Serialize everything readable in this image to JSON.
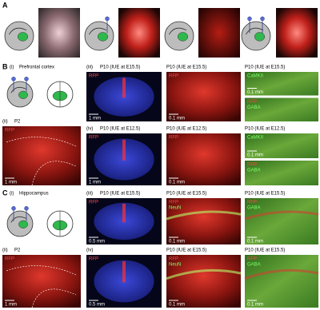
{
  "panel_a": {
    "label": "A"
  },
  "panel_b": {
    "label": "B",
    "schematic": {
      "label": "(i)",
      "title": "Prefrontal cortex"
    },
    "p2": {
      "label": "(ii)",
      "title": "P2",
      "stains": [
        {
          "text": "RFP",
          "color": "#ff4a4a"
        }
      ],
      "scale": "1 mm"
    },
    "rows": [
      {
        "label": "(iii)",
        "columns": [
          {
            "title": "P10 (IUE at E15.5)",
            "images": [
              {
                "stains": [
                  {
                    "text": "RFP",
                    "color": "#ff4a4a"
                  }
                ],
                "scale": "1 mm"
              }
            ]
          },
          {
            "title": "P10 (IUE at E15.5)",
            "images": [
              {
                "stains": [
                  {
                    "text": "RFP",
                    "color": "#ff4a4a"
                  }
                ],
                "scale": "0.1 mm"
              }
            ]
          },
          {
            "title": "P10 (IUE at E15.5)",
            "images": [
              {
                "stains": [
                  {
                    "text": "CaMKII",
                    "color": "#7dff6a"
                  }
                ],
                "scale": "0.1 mm"
              },
              {
                "stains": [
                  {
                    "text": "RFP",
                    "color": "#ff4a4a"
                  },
                  {
                    "text": "GABA",
                    "color": "#7dff6a"
                  }
                ]
              }
            ]
          }
        ]
      },
      {
        "label": "(iv)",
        "columns": [
          {
            "title": "P10 (IUE at E12.5)",
            "images": [
              {
                "stains": [
                  {
                    "text": "RFP",
                    "color": "#ff4a4a"
                  }
                ],
                "scale": "1 mm"
              }
            ]
          },
          {
            "title": "P10 (IUE at E12.5)",
            "images": [
              {
                "stains": [
                  {
                    "text": "RFP",
                    "color": "#ff4a4a"
                  }
                ],
                "scale": "0.1 mm"
              }
            ]
          },
          {
            "title": "P10 (IUE at E12.5)",
            "images": [
              {
                "stains": [
                  {
                    "text": "CaMKII",
                    "color": "#7dff6a"
                  }
                ],
                "scale": "0.1 mm"
              },
              {
                "stains": [
                  {
                    "text": "RFP",
                    "color": "#ff4a4a"
                  },
                  {
                    "text": "GABA",
                    "color": "#7dff6a"
                  }
                ]
              }
            ]
          }
        ]
      }
    ]
  },
  "panel_c": {
    "label": "C",
    "schematic": {
      "label": "(i)",
      "title": "Hippocampus"
    },
    "p2": {
      "label": "(ii)",
      "title": "P2",
      "stains": [
        {
          "text": "RFP",
          "color": "#ff4a4a"
        }
      ],
      "scale": "1 mm"
    },
    "rows": [
      {
        "label": "(iii)",
        "columns": [
          {
            "title": "P10 (IUE at E15.5)",
            "images": [
              {
                "stains": [
                  {
                    "text": "RFP",
                    "color": "#ff4a4a"
                  }
                ],
                "scale": "0.5 mm"
              }
            ]
          },
          {
            "title": "P10 (IUE at E15.5)",
            "images": [
              {
                "stains": [
                  {
                    "text": "RFP",
                    "color": "#ff4a4a"
                  },
                  {
                    "text": "NeuN",
                    "color": "#7dff6a"
                  }
                ],
                "scale": "0.1 mm"
              }
            ]
          },
          {
            "title": "P10 (IUE at E15.5)",
            "images": [
              {
                "stains": [
                  {
                    "text": "RFP",
                    "color": "#ff4a4a"
                  },
                  {
                    "text": "GABA",
                    "color": "#7dff6a"
                  }
                ],
                "scale": "0.1 mm"
              }
            ]
          }
        ]
      },
      {
        "label": "(iv)",
        "columns": [
          {
            "images": [
              {
                "stains": [
                  {
                    "text": "RFP",
                    "color": "#ff4a4a"
                  }
                ],
                "scale": "0.5 mm"
              }
            ]
          },
          {
            "title": "P10 (IUE at E15.5)",
            "images": [
              {
                "stains": [
                  {
                    "text": "RFP",
                    "color": "#ff4a4a"
                  },
                  {
                    "text": "NeuN",
                    "color": "#7dff6a"
                  }
                ],
                "scale": "0.1 mm"
              }
            ]
          },
          {
            "title": "P10 (IUE at E15.5)",
            "images": [
              {
                "stains": [
                  {
                    "text": "RFP",
                    "color": "#ff4a4a"
                  },
                  {
                    "text": "GABA",
                    "color": "#7dff6a"
                  }
                ],
                "scale": "0.1 mm"
              }
            ]
          }
        ]
      }
    ]
  }
}
